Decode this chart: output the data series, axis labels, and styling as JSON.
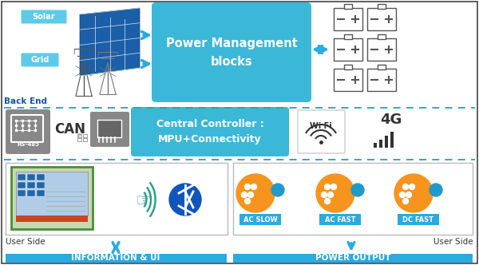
{
  "bg_color": "#ffffff",
  "border_color": "#444444",
  "blue_box_color": "#3BB8D8",
  "light_blue_label": "#5DCAE8",
  "cyan_arrow_color": "#29ABE2",
  "dashed_line_color": "#3399BB",
  "gray_icon_color": "#888888",
  "orange_color": "#F7941D",
  "green_border": "#4A8E3A",
  "sections": {
    "backend_label": "Back End",
    "power_mgmt_text": "Power Management\nblocks",
    "solar_label": "Solar",
    "grid_label": "Grid",
    "central_controller_text": "Central Controller :\nMPU+Connectivity",
    "rs485_label": "RS-485",
    "can_label": "CAN",
    "wifi_label": "Wi Fi",
    "fg_label": "4G",
    "user_side_left": "User Side",
    "user_side_right": "User Side",
    "info_ui_label": "INFORMATION & UI",
    "power_output_label": "POWER OUTPUT",
    "ac_slow_label": "AC SLOW",
    "ac_fast_label": "AC FAST",
    "dc_fast_label": "DC FAST"
  }
}
